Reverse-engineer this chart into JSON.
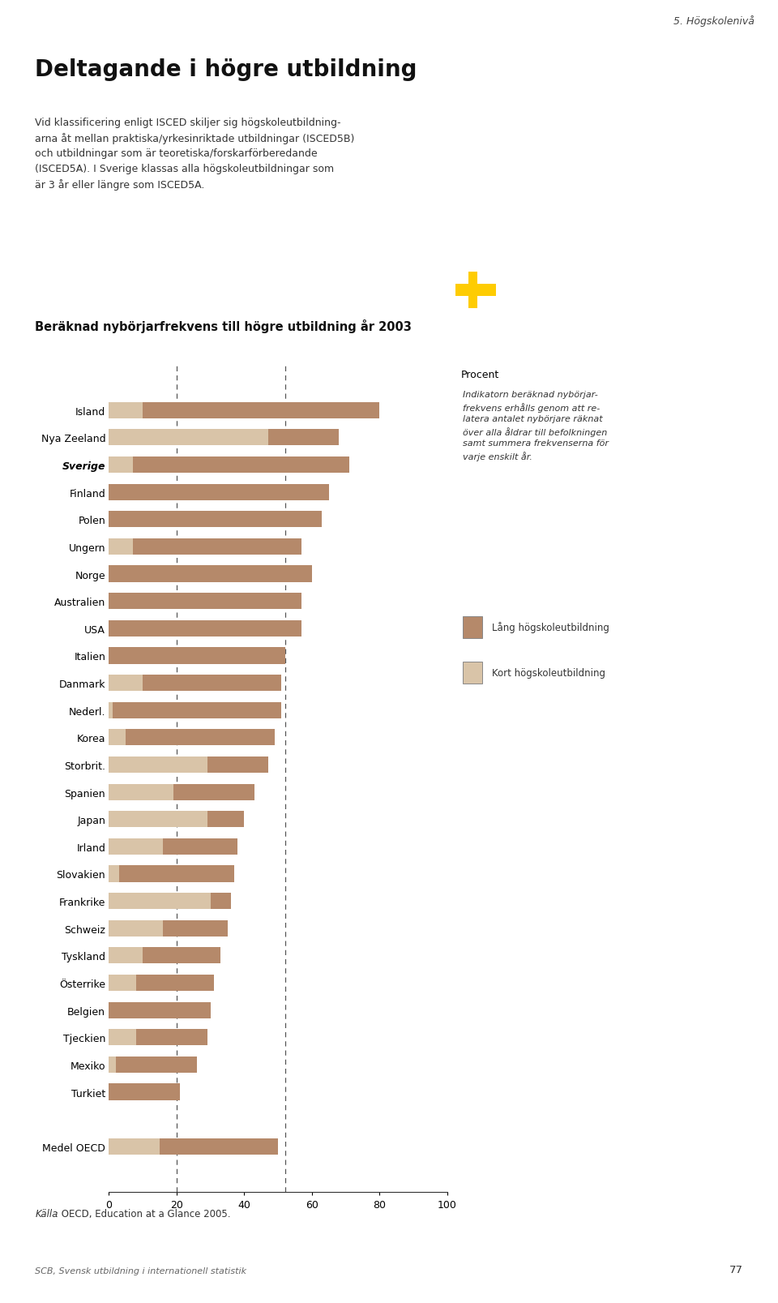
{
  "chart_title": "Beräknad nybörjarfrekvens till högre utbildning år 2003",
  "page_label": "5. Högskolenivå",
  "main_title": "Deltagande i högre utbildning",
  "body_text": "Vid klassificering enligt ISCED skiljer sig högskoleutbildning-\narna åt mellan praktiska/yrkesinriktade utbildningar (ISCED5B)\noch utbildningar som är teoretiska/forskarförberedande\n(ISCED5A). I Sverige klassas alla högskoleutbildningar som\när 3 år eller längre som ISCED5A.",
  "footnote_italic": "Källa",
  "footnote_rest": ": OECD, Education at a Glance 2005.",
  "footer": "SCB, Svensk utbildning i internationell statistik",
  "page_number": "77",
  "countries": [
    "Island",
    "Nya Zeeland",
    "Sverige",
    "Finland",
    "Polen",
    "Ungern",
    "Norge",
    "Australien",
    "USA",
    "Italien",
    "Danmark",
    "Nederl.",
    "Korea",
    "Storbrit.",
    "Spanien",
    "Japan",
    "Irland",
    "Slovakien",
    "Frankrike",
    "Schweiz",
    "Tyskland",
    "Österrike",
    "Belgien",
    "Tjeckien",
    "Mexiko",
    "Turkiet",
    "",
    "Medel OECD"
  ],
  "long_values": [
    80,
    68,
    71,
    65,
    63,
    57,
    60,
    57,
    57,
    52,
    51,
    51,
    49,
    47,
    43,
    40,
    38,
    37,
    36,
    35,
    33,
    31,
    30,
    29,
    26,
    21,
    0,
    50
  ],
  "short_values": [
    10,
    47,
    7,
    0,
    0,
    7,
    0,
    0,
    0,
    0,
    10,
    1,
    5,
    29,
    19,
    29,
    16,
    3,
    30,
    16,
    10,
    8,
    0,
    8,
    2,
    0,
    0,
    15
  ],
  "bold_country": "Sverige",
  "color_long": "#b5896a",
  "color_short": "#d9c4a8",
  "xlabel": "Procent",
  "xlim": [
    0,
    100
  ],
  "xticks": [
    0,
    20,
    40,
    60,
    80,
    100
  ],
  "dashed_lines": [
    20,
    52
  ],
  "legend_long": "Lång högskoleutbildning",
  "legend_short": "Kort högskoleutbildning",
  "annotation_text": "Indikatorn beräknad nybörjar-\nfrekvens erhålls genom att re-\nlatera antalet nybörjare räknat\növer alla åldrar till befolkningen\nsamt summera frekvenserna för\nvarje enskilt år."
}
